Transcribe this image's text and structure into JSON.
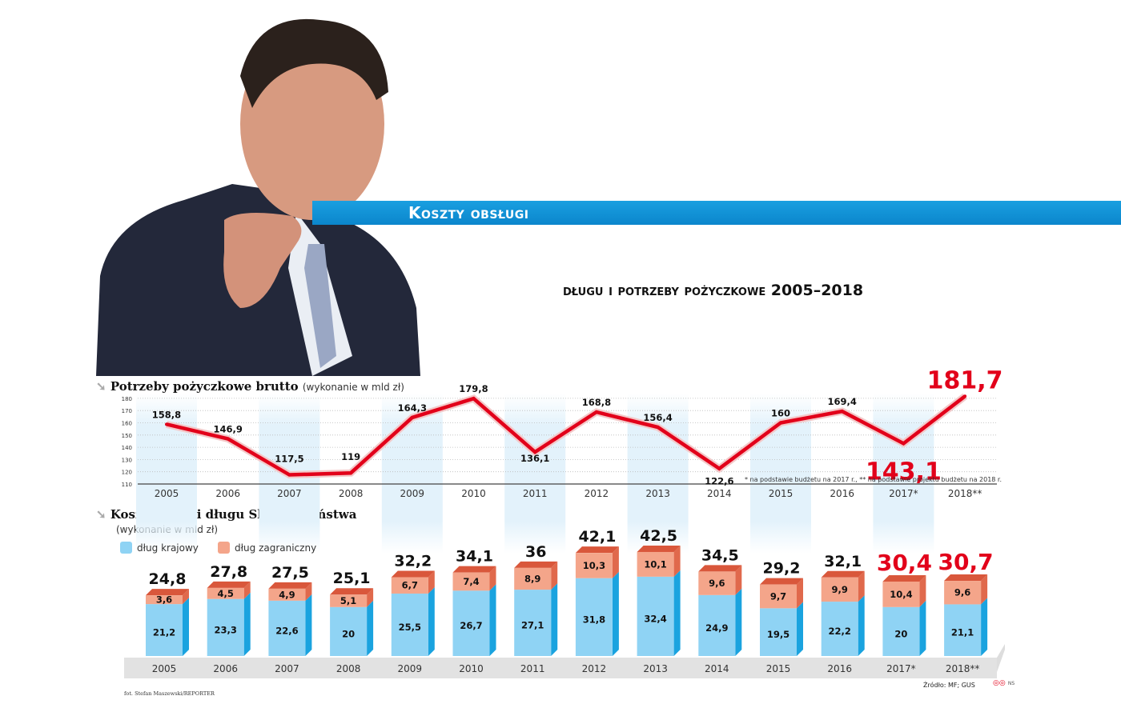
{
  "header": {
    "banner": "Koszty obsługi",
    "subtitle": "długu i potrzeby pożyczkowe 2005–2018"
  },
  "colors": {
    "accent": "#e2001a",
    "domestic": "#8fd3f4",
    "foreign": "#f4a58a",
    "banner": "#1398dc"
  },
  "chart_data": [
    {
      "type": "line",
      "title": "Potrzeby pożyczkowe brutto",
      "subtitle": "(wykonanie w mld zł)",
      "categories": [
        "2005",
        "2006",
        "2007",
        "2008",
        "2009",
        "2010",
        "2011",
        "2012",
        "2013",
        "2014",
        "2015",
        "2016",
        "2017*",
        "2018**"
      ],
      "values": [
        158.8,
        146.9,
        117.5,
        119,
        164.3,
        179.8,
        136.1,
        168.8,
        156.4,
        122.6,
        160,
        169.4,
        143.1,
        181.7
      ],
      "labels": [
        "158,8",
        "146,9",
        "117,5",
        "119",
        "164,3",
        "179,8",
        "136,1",
        "168,8",
        "156,4",
        "122,6",
        "160",
        "169,4",
        "143,1",
        "181,7"
      ],
      "yticks": [
        "110",
        "120",
        "130",
        "140",
        "150",
        "160",
        "170",
        "180"
      ],
      "ylim": [
        110,
        180
      ],
      "grid": true,
      "note": "* na podstawie budżetu na 2017 r., ** na podstawie projektu budżetu na 2018 r."
    },
    {
      "type": "bar",
      "stacked": true,
      "title": "Koszt obsługi długu Skarbu Państwa",
      "subtitle": "(wykonanie w mld zł)",
      "categories": [
        "2005",
        "2006",
        "2007",
        "2008",
        "2009",
        "2010",
        "2011",
        "2012",
        "2013",
        "2014",
        "2015",
        "2016",
        "2017*",
        "2018**"
      ],
      "series": [
        {
          "name": "dług krajowy",
          "values": [
            21.2,
            23.3,
            22.6,
            20,
            25.5,
            26.7,
            27.1,
            31.8,
            32.4,
            24.9,
            19.5,
            22.2,
            20,
            21.1
          ],
          "labels": [
            "21,2",
            "23,3",
            "22,6",
            "20",
            "25,5",
            "26,7",
            "27,1",
            "31,8",
            "32,4",
            "24,9",
            "19,5",
            "22,2",
            "20",
            "21,1"
          ]
        },
        {
          "name": "dług zagraniczny",
          "values": [
            3.6,
            4.5,
            4.9,
            5.1,
            6.7,
            7.4,
            8.9,
            10.3,
            10.1,
            9.6,
            9.7,
            9.9,
            10.4,
            9.6
          ],
          "labels": [
            "3,6",
            "4,5",
            "4,9",
            "5,1",
            "6,7",
            "7,4",
            "8,9",
            "10,3",
            "10,1",
            "9,6",
            "9,7",
            "9,9",
            "10,4",
            "9,6"
          ]
        }
      ],
      "totals": [
        24.8,
        27.8,
        27.5,
        25.1,
        32.2,
        34.1,
        36,
        42.1,
        42.5,
        34.5,
        29.2,
        32.1,
        30.4,
        30.7
      ],
      "total_labels": [
        "24,8",
        "27,8",
        "27,5",
        "25,1",
        "32,2",
        "34,1",
        "36",
        "42,1",
        "42,5",
        "34,5",
        "29,2",
        "32,1",
        "30,4",
        "30,7"
      ]
    }
  ],
  "footer": {
    "source": "Źródło: MF; GUS",
    "photo_credit": "fot. Stefan Maszewski/REPORTER",
    "ns": "NS"
  }
}
